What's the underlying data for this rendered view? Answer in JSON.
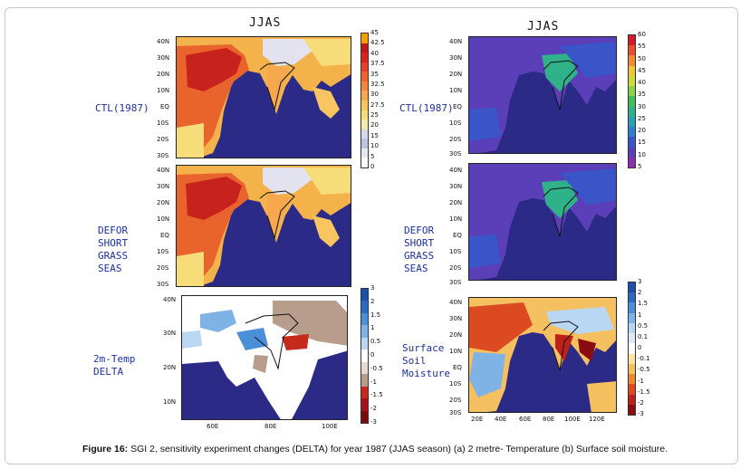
{
  "figure": {
    "caption_bold": "Figure 16:",
    "caption_text": " SGI 2, sensitivity experiment changes (DELTA) for year 1987 (JJAS season) (a) 2 metre- Temperature (b) Surface soil moisture."
  },
  "columns": [
    {
      "title": "JJAS"
    },
    {
      "title": "JJAS"
    }
  ],
  "rows": {
    "left": [
      "CTL(1987)",
      "DEFOR\nSHORT\nGRASS\nSEAS",
      "2m-Temp\nDELTA"
    ],
    "right": [
      "CTL(1987)",
      "DEFOR\nSHORT\nGRASS\nSEAS",
      "Surface\nSoil\nMoisture"
    ]
  },
  "axes": {
    "lat_ticks_large": [
      "40N",
      "30N",
      "20N",
      "10N",
      "EQ",
      "10S",
      "20S",
      "30S"
    ],
    "lat_ticks_zoom": [
      "40N",
      "30N",
      "20N",
      "10N"
    ],
    "lon_ticks_zoom": [
      "60E",
      "80E",
      "100E"
    ],
    "lon_ticks_large": [
      "20E",
      "40E",
      "60E",
      "80E",
      "100E",
      "120E"
    ]
  },
  "colorbars": {
    "temp": {
      "labels": [
        "45",
        "42.5",
        "40",
        "37.5",
        "35",
        "32.5",
        "30",
        "27.5",
        "25",
        "20",
        "15",
        "10",
        "5",
        "0"
      ],
      "colors": [
        "#f2a100",
        "#c0191c",
        "#d9251e",
        "#e8402a",
        "#f0622e",
        "#f5853b",
        "#f7a74d",
        "#f8c560",
        "#f7dc7a",
        "#f3eab0",
        "#d8d8ea",
        "#bfc4e2",
        "#e8e8f4",
        "#fafafa"
      ]
    },
    "moist_abs": {
      "labels": [
        "60",
        "55",
        "50",
        "45",
        "40",
        "35",
        "30",
        "25",
        "20",
        "15",
        "10",
        "5"
      ],
      "colors": [
        "#d7192a",
        "#e84f2e",
        "#f08a34",
        "#f0c43b",
        "#cfd93c",
        "#8dd04a",
        "#40c05a",
        "#2fb28a",
        "#2aa1b8",
        "#2f7fd0",
        "#3a55c8",
        "#5a3fb8",
        "#8a2fb0"
      ]
    },
    "delta_temp": {
      "labels": [
        "3",
        "2",
        "1.5",
        "1",
        "0.5",
        "0",
        "-0.5",
        "-1",
        "-1.5",
        "-2",
        "-3"
      ],
      "colors": [
        "#1c4fa8",
        "#2c6bc4",
        "#4a8fd8",
        "#7fb3e6",
        "#b9d6f2",
        "#ffffff",
        "#e4d8d0",
        "#b89c8c",
        "#c52a1c",
        "#a8121a",
        "#7a0c10"
      ]
    },
    "delta_moist": {
      "labels": [
        "3",
        "2",
        "1.5",
        "1",
        "0.5",
        "0.1",
        "0",
        "-0.1",
        "-0.5",
        "-1",
        "-1.5",
        "-2",
        "-3"
      ],
      "colors": [
        "#1c4fa8",
        "#2c6bc4",
        "#4a8fd8",
        "#7fb3e6",
        "#b9d6f2",
        "#dce9f7",
        "#ffffff",
        "#fbe6a0",
        "#f5c060",
        "#ec8a34",
        "#dc4a22",
        "#c0201a",
        "#8a0c10"
      ]
    }
  }
}
